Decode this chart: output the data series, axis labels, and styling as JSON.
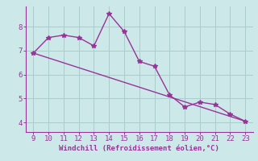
{
  "xlabel": "Windchill (Refroidissement éolien,°C)",
  "x_data": [
    9,
    10,
    11,
    12,
    13,
    14,
    15,
    16,
    17,
    18,
    19,
    20,
    21,
    22,
    23
  ],
  "y_data": [
    6.9,
    7.55,
    7.65,
    7.55,
    7.2,
    8.55,
    7.8,
    6.55,
    6.35,
    5.15,
    4.65,
    4.85,
    4.75,
    4.35,
    4.05
  ],
  "trend_x": [
    9,
    23
  ],
  "trend_y": [
    6.9,
    4.05
  ],
  "line_color": "#993399",
  "bg_color": "#cce8e8",
  "grid_color": "#aacccc",
  "axes_color": "#993399",
  "tick_color": "#993399",
  "marker": "*",
  "xlim_min": 8.5,
  "xlim_max": 23.5,
  "ylim_min": 3.6,
  "ylim_max": 8.85,
  "yticks": [
    4,
    5,
    6,
    7,
    8
  ],
  "xticks": [
    9,
    10,
    11,
    12,
    13,
    14,
    15,
    16,
    17,
    18,
    19,
    20,
    21,
    22,
    23
  ],
  "xlabel_fontsize": 6.5,
  "tick_fontsize": 6.5,
  "linewidth": 1.0,
  "markersize": 4
}
